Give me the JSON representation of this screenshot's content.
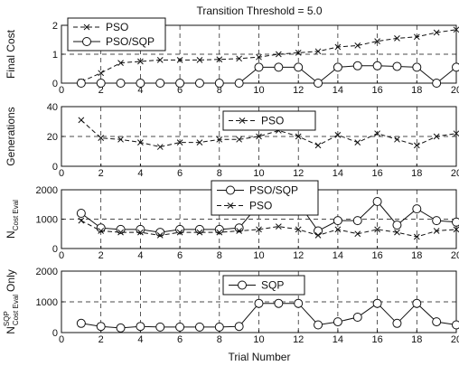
{
  "figure": {
    "title": "Transition Threshold = 5.0",
    "xlabel": "Trial Number"
  },
  "chart_data": [
    {
      "type": "line",
      "ylabel": "Final Cost",
      "ylim": [
        0,
        2
      ],
      "yticks": [
        0,
        1,
        2
      ],
      "xlim": [
        0,
        20
      ],
      "xticks": [
        0,
        2,
        4,
        6,
        8,
        10,
        12,
        14,
        16,
        18,
        20
      ],
      "grid": true,
      "legend_position": "top-left",
      "x": [
        1,
        2,
        3,
        4,
        5,
        6,
        7,
        8,
        9,
        10,
        11,
        12,
        13,
        14,
        15,
        16,
        17,
        18,
        19,
        20
      ],
      "series": [
        {
          "name": "PSO",
          "marker": "x",
          "dash": true,
          "values": [
            0.05,
            0.35,
            0.7,
            0.75,
            0.8,
            0.8,
            0.8,
            0.82,
            0.85,
            0.9,
            1.0,
            1.05,
            1.1,
            1.25,
            1.3,
            1.45,
            1.55,
            1.6,
            1.75,
            1.85
          ]
        },
        {
          "name": "PSO/SQP",
          "marker": "o",
          "dash": false,
          "values": [
            0.0,
            0.0,
            0.0,
            0.0,
            0.0,
            0.0,
            0.0,
            0.0,
            0.0,
            0.55,
            0.55,
            0.55,
            0.0,
            0.55,
            0.6,
            0.6,
            0.58,
            0.55,
            0.0,
            0.55
          ]
        }
      ]
    },
    {
      "type": "line",
      "ylabel": "Generations",
      "ylim": [
        0,
        40
      ],
      "yticks": [
        0,
        20,
        40
      ],
      "xlim": [
        0,
        20
      ],
      "xticks": [
        0,
        2,
        4,
        6,
        8,
        10,
        12,
        14,
        16,
        18,
        20
      ],
      "grid": true,
      "legend_position": "top-center",
      "x": [
        1,
        2,
        3,
        4,
        5,
        6,
        7,
        8,
        9,
        10,
        11,
        12,
        13,
        14,
        15,
        16,
        17,
        18,
        19,
        20
      ],
      "series": [
        {
          "name": "PSO",
          "marker": "x",
          "dash": true,
          "values": [
            31,
            19,
            18,
            16,
            13,
            16,
            16,
            18,
            18,
            20,
            24,
            20,
            14,
            21,
            16,
            22,
            18,
            14,
            20,
            22
          ]
        }
      ]
    },
    {
      "type": "line",
      "ylabel_main": "N",
      "ylabel_sub": "Cost Eval",
      "ylim": [
        0,
        2000
      ],
      "yticks": [
        0,
        1000,
        2000
      ],
      "xlim": [
        0,
        20
      ],
      "xticks": [
        0,
        2,
        4,
        6,
        8,
        10,
        12,
        14,
        16,
        18,
        20
      ],
      "grid": true,
      "legend_position": "top-center",
      "x": [
        1,
        2,
        3,
        4,
        5,
        6,
        7,
        8,
        9,
        10,
        11,
        12,
        13,
        14,
        15,
        16,
        17,
        18,
        19,
        20
      ],
      "series": [
        {
          "name": "PSO/SQP",
          "marker": "o",
          "dash": false,
          "values": [
            1200,
            700,
            650,
            650,
            550,
            650,
            650,
            650,
            700,
            1500,
            1700,
            1550,
            600,
            950,
            950,
            1600,
            800,
            1350,
            950,
            900
          ]
        },
        {
          "name": "PSO",
          "marker": "x",
          "dash": true,
          "values": [
            950,
            600,
            550,
            550,
            450,
            550,
            550,
            550,
            600,
            650,
            750,
            650,
            450,
            650,
            500,
            650,
            550,
            400,
            600,
            650
          ]
        }
      ]
    },
    {
      "type": "line",
      "ylabel_main": "N",
      "ylabel_sup": "SQP",
      "ylabel_sub": "Cost Eval",
      "ylabel_suffix": "Only",
      "ylim": [
        0,
        2000
      ],
      "yticks": [
        0,
        1000,
        2000
      ],
      "xlim": [
        0,
        20
      ],
      "xticks": [
        0,
        2,
        4,
        6,
        8,
        10,
        12,
        14,
        16,
        18,
        20
      ],
      "grid": true,
      "legend_position": "top-center",
      "x": [
        1,
        2,
        3,
        4,
        5,
        6,
        7,
        8,
        9,
        10,
        11,
        12,
        13,
        14,
        15,
        16,
        17,
        18,
        19,
        20
      ],
      "series": [
        {
          "name": "SQP",
          "marker": "o",
          "dash": false,
          "values": [
            300,
            200,
            150,
            200,
            180,
            180,
            180,
            180,
            200,
            950,
            950,
            950,
            250,
            350,
            500,
            950,
            300,
            950,
            350,
            250
          ]
        }
      ]
    }
  ]
}
